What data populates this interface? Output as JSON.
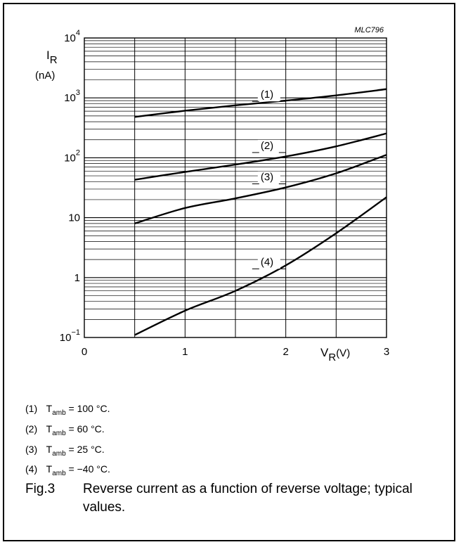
{
  "chart_data": {
    "type": "line",
    "code": "MLC796",
    "ylabel": "I",
    "ylabel_sub": "R",
    "ylabel_unit": "(nA)",
    "xlabel": "V",
    "xlabel_sub": "R",
    "xlabel_unit": "(V)",
    "xlim": [
      0,
      3
    ],
    "ylim": [
      0.1,
      10000
    ],
    "y_scale": "log",
    "grid": true,
    "x_ticks": [
      {
        "value": 0,
        "label": "0"
      },
      {
        "value": 1,
        "label": "1"
      },
      {
        "value": 2,
        "label": "2"
      },
      {
        "value": 3,
        "label": "3"
      }
    ],
    "y_ticks": [
      {
        "value": 0.1,
        "base": "10",
        "exp": "−1",
        "label": ""
      },
      {
        "value": 1,
        "base": "",
        "exp": "",
        "label": "1"
      },
      {
        "value": 10,
        "base": "",
        "exp": "",
        "label": "10"
      },
      {
        "value": 100,
        "base": "10",
        "exp": "2",
        "label": ""
      },
      {
        "value": 1000,
        "base": "10",
        "exp": "3",
        "label": ""
      },
      {
        "value": 10000,
        "base": "10",
        "exp": "4",
        "label": ""
      }
    ],
    "series": [
      {
        "name": "(1)",
        "label_at": [
          1.75,
          1000
        ],
        "x": [
          0.5,
          1.0,
          1.5,
          2.0,
          2.5,
          3.0
        ],
        "y": [
          480,
          610,
          750,
          900,
          1100,
          1400
        ]
      },
      {
        "name": "(2)",
        "label_at": [
          1.75,
          140
        ],
        "x": [
          0.5,
          1.0,
          1.5,
          2.0,
          2.5,
          3.0
        ],
        "y": [
          43,
          58,
          77,
          105,
          155,
          255
        ]
      },
      {
        "name": "(3)",
        "label_at": [
          1.75,
          42
        ],
        "x": [
          0.5,
          1.0,
          1.5,
          2.0,
          2.5,
          3.0
        ],
        "y": [
          8,
          14.5,
          21,
          32,
          55,
          112
        ]
      },
      {
        "name": "(4)",
        "label_at": [
          1.75,
          1.6
        ],
        "x": [
          0.5,
          1.0,
          1.5,
          2.0,
          2.5,
          3.0
        ],
        "y": [
          0.11,
          0.28,
          0.6,
          1.6,
          5.5,
          22
        ]
      }
    ]
  },
  "legend": [
    {
      "num": "(1)",
      "t": "T",
      "sub": "amb",
      "rest": " = 100 °C."
    },
    {
      "num": "(2)",
      "t": "T",
      "sub": "amb",
      "rest": " = 60 °C."
    },
    {
      "num": "(3)",
      "t": "T",
      "sub": "amb",
      "rest": " = 25 °C."
    },
    {
      "num": "(4)",
      "t": "T",
      "sub": "amb",
      "rest": " = −40 °C."
    }
  ],
  "caption": {
    "fig": "Fig.3",
    "text": "Reverse current as a function of reverse voltage; typical values."
  }
}
